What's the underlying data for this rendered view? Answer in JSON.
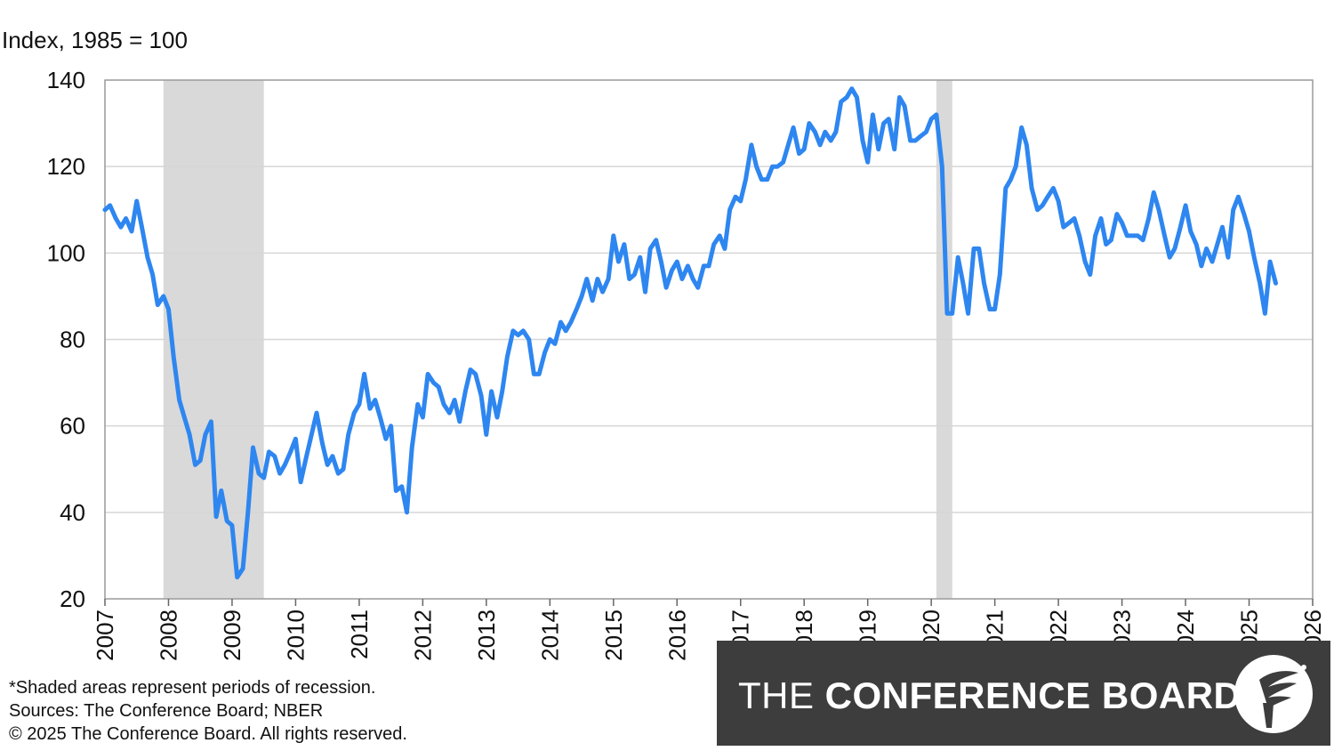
{
  "ylabel": "Index, 1985 = 100",
  "notes": {
    "recession": "*Shaded areas represent periods of recession.",
    "sources": "Sources:  The Conference Board;  NBER",
    "copyright": "© 2025 The Conference Board. All rights reserved."
  },
  "brand": {
    "light": "THE ",
    "bold": "CONFERENCE BOARD",
    "logo_icon": "torch-circle-icon"
  },
  "colors": {
    "line": "#2e86f0",
    "recession": "#d9d9d9",
    "grid": "#d6d6d6",
    "brand_bg": "#3d3d3d"
  },
  "chart_data": {
    "type": "line",
    "title": "",
    "xlabel": "",
    "ylabel": "Index, 1985 = 100",
    "ylim": [
      20,
      140
    ],
    "xlim": [
      2007,
      2026
    ],
    "yticks": [
      20,
      40,
      60,
      80,
      100,
      120,
      140
    ],
    "xticks": [
      "2007",
      "2008",
      "2009",
      "2010",
      "2011",
      "2012",
      "2013",
      "2014",
      "2015",
      "2016",
      "2017",
      "2018",
      "2019",
      "2020",
      "2021",
      "2022",
      "2023",
      "2024",
      "2025",
      "2026"
    ],
    "grid": "horizontal",
    "recessions": [
      [
        2007.92,
        2009.5
      ],
      [
        2020.08,
        2020.33
      ]
    ],
    "series": [
      {
        "x": [
          2007.0,
          2007.08,
          2007.17,
          2007.25,
          2007.33,
          2007.42,
          2007.5,
          2007.58,
          2007.67,
          2007.75,
          2007.83,
          2007.92,
          2008.0,
          2008.08,
          2008.17,
          2008.25,
          2008.33,
          2008.42,
          2008.5,
          2008.58,
          2008.67,
          2008.75,
          2008.83,
          2008.92,
          2009.0,
          2009.08,
          2009.17,
          2009.25,
          2009.33,
          2009.42,
          2009.5,
          2009.58,
          2009.67,
          2009.75,
          2009.83,
          2009.92,
          2010.0,
          2010.08,
          2010.17,
          2010.25,
          2010.33,
          2010.42,
          2010.5,
          2010.58,
          2010.67,
          2010.75,
          2010.83,
          2010.92,
          2011.0,
          2011.08,
          2011.17,
          2011.25,
          2011.33,
          2011.42,
          2011.5,
          2011.58,
          2011.67,
          2011.75,
          2011.83,
          2011.92,
          2012.0,
          2012.08,
          2012.17,
          2012.25,
          2012.33,
          2012.42,
          2012.5,
          2012.58,
          2012.67,
          2012.75,
          2012.83,
          2012.92,
          2013.0,
          2013.08,
          2013.17,
          2013.25,
          2013.33,
          2013.42,
          2013.5,
          2013.58,
          2013.67,
          2013.75,
          2013.83,
          2013.92,
          2014.0,
          2014.08,
          2014.17,
          2014.25,
          2014.33,
          2014.42,
          2014.5,
          2014.58,
          2014.67,
          2014.75,
          2014.83,
          2014.92,
          2015.0,
          2015.08,
          2015.17,
          2015.25,
          2015.33,
          2015.42,
          2015.5,
          2015.58,
          2015.67,
          2015.75,
          2015.83,
          2015.92,
          2016.0,
          2016.08,
          2016.17,
          2016.25,
          2016.33,
          2016.42,
          2016.5,
          2016.58,
          2016.67,
          2016.75,
          2016.83,
          2016.92,
          2017.0,
          2017.08,
          2017.17,
          2017.25,
          2017.33,
          2017.42,
          2017.5,
          2017.58,
          2017.67,
          2017.75,
          2017.83,
          2017.92,
          2018.0,
          2018.08,
          2018.17,
          2018.25,
          2018.33,
          2018.42,
          2018.5,
          2018.58,
          2018.67,
          2018.75,
          2018.83,
          2018.92,
          2019.0,
          2019.08,
          2019.17,
          2019.25,
          2019.33,
          2019.42,
          2019.5,
          2019.58,
          2019.67,
          2019.75,
          2019.83,
          2019.92,
          2020.0,
          2020.08,
          2020.17,
          2020.25,
          2020.33,
          2020.42,
          2020.5,
          2020.58,
          2020.67,
          2020.75,
          2020.83,
          2020.92,
          2021.0,
          2021.08,
          2021.17,
          2021.25,
          2021.33,
          2021.42,
          2021.5,
          2021.58,
          2021.67,
          2021.75,
          2021.83,
          2021.92,
          2022.0,
          2022.08,
          2022.17,
          2022.25,
          2022.33,
          2022.42,
          2022.5,
          2022.58,
          2022.67,
          2022.75,
          2022.83,
          2022.92,
          2023.0,
          2023.08,
          2023.17,
          2023.25,
          2023.33,
          2023.42,
          2023.5,
          2023.58,
          2023.67,
          2023.75,
          2023.83,
          2023.92,
          2024.0,
          2024.08,
          2024.17,
          2024.25,
          2024.33,
          2024.42,
          2024.5,
          2024.58,
          2024.67,
          2024.75,
          2024.83,
          2024.92,
          2025.0,
          2025.08,
          2025.17,
          2025.25,
          2025.33,
          2025.42
        ],
        "y": [
          110,
          111,
          108,
          106,
          108,
          105,
          112,
          106,
          99,
          95,
          88,
          90,
          87,
          76,
          66,
          62,
          58,
          51,
          52,
          58,
          61,
          39,
          45,
          38,
          37,
          25,
          27,
          40,
          55,
          49,
          48,
          54,
          53,
          49,
          51,
          54,
          57,
          47,
          53,
          58,
          63,
          56,
          51,
          53,
          49,
          50,
          58,
          63,
          65,
          72,
          64,
          66,
          62,
          57,
          60,
          45,
          46,
          40,
          55,
          65,
          62,
          72,
          70,
          69,
          65,
          63,
          66,
          61,
          68,
          73,
          72,
          67,
          58,
          68,
          62,
          68,
          76,
          82,
          81,
          82,
          80,
          72,
          72,
          77,
          80,
          79,
          84,
          82,
          84,
          87,
          90,
          94,
          89,
          94,
          91,
          94,
          104,
          98,
          102,
          94,
          95,
          99,
          91,
          101,
          103,
          98,
          92,
          96,
          98,
          94,
          97,
          94,
          92,
          97,
          97,
          102,
          104,
          101,
          110,
          113,
          112,
          117,
          125,
          120,
          117,
          117,
          120,
          120,
          121,
          125,
          129,
          123,
          124,
          130,
          128,
          125,
          128,
          126,
          128,
          135,
          136,
          138,
          136,
          126,
          121,
          132,
          124,
          130,
          131,
          124,
          136,
          134,
          126,
          126,
          127,
          128,
          131,
          132,
          120,
          86,
          86,
          99,
          93,
          86,
          101,
          101,
          93,
          87,
          87,
          95,
          115,
          117,
          120,
          129,
          125,
          115,
          110,
          111,
          113,
          115,
          112,
          106,
          107,
          108,
          104,
          98,
          95,
          104,
          108,
          102,
          103,
          109,
          107,
          104,
          104,
          104,
          103,
          108,
          114,
          110,
          104,
          99,
          101,
          106,
          111,
          105,
          102,
          97,
          101,
          98,
          102,
          106,
          99,
          110,
          113,
          109,
          105,
          99,
          93,
          86,
          98,
          93
        ]
      }
    ]
  }
}
